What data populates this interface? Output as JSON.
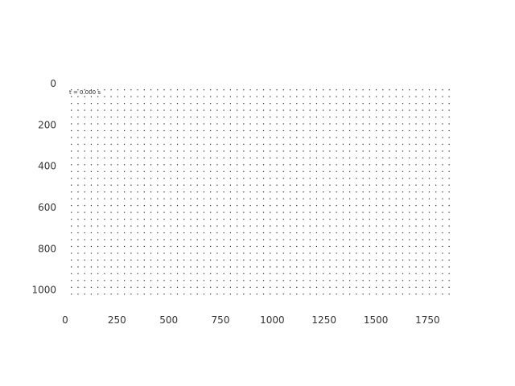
{
  "chart_data": {
    "type": "scatter",
    "title": "",
    "xlabel": "",
    "ylabel": "",
    "annotation": "t = 0.000 s",
    "xlim": [
      0,
      1900
    ],
    "ylim": [
      1060,
      0
    ],
    "y_inverted": true,
    "grid": false,
    "x_ticks": [
      0,
      250,
      500,
      750,
      1000,
      1250,
      1500,
      1750
    ],
    "y_ticks": [
      0,
      200,
      400,
      600,
      800,
      1000
    ],
    "x_tick_labels": [
      "0",
      "250",
      "500",
      "750",
      "1000",
      "1250",
      "1500",
      "1750"
    ],
    "y_tick_labels": [
      "0",
      "200",
      "400",
      "600",
      "800",
      "1000"
    ],
    "lattice": {
      "x_start": 30,
      "x_step": 32,
      "x_count": 58,
      "y_start": 30,
      "y_step": 33,
      "y_count": 31
    },
    "point_color": "#222222"
  }
}
